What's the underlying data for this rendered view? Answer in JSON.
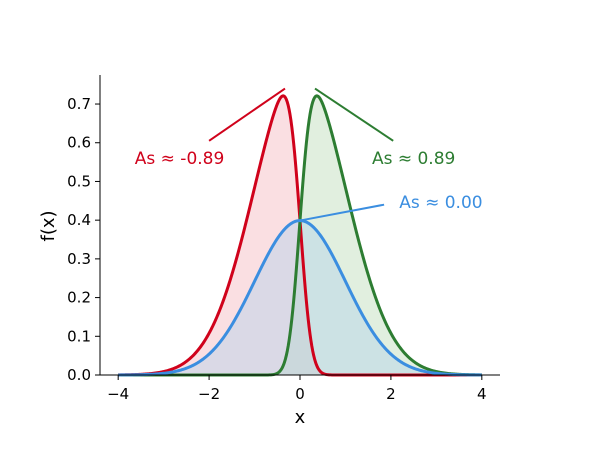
{
  "chart_data": {
    "type": "area",
    "title": "",
    "xlabel": "x",
    "ylabel": "f(x)",
    "xlim": [
      -4.4,
      4.4
    ],
    "ylim": [
      0.0,
      0.775
    ],
    "grid": false,
    "xticks": [
      -4,
      -2,
      0,
      2,
      4
    ],
    "xtick_labels": [
      "−4",
      "−2",
      "0",
      "2",
      "4"
    ],
    "yticks": [
      0.0,
      0.1,
      0.2,
      0.3,
      0.4,
      0.5,
      0.6,
      0.7
    ],
    "ytick_labels": [
      "0.0",
      "0.1",
      "0.2",
      "0.3",
      "0.4",
      "0.5",
      "0.6",
      "0.7"
    ],
    "series": [
      {
        "color": "#d0021b",
        "fill_color": "#f5b7bf",
        "skew_alpha": -5,
        "x_range": [
          -4,
          4
        ],
        "peak": {
          "x": -0.33,
          "y": 0.74
        },
        "annotation": {
          "text": "As ≈ -0.89",
          "text_at": [
            -2.65,
            0.56
          ],
          "points_to": [
            -0.33,
            0.74
          ],
          "line_from": [
            -2.0,
            0.605
          ]
        }
      },
      {
        "color": "#2d7d32",
        "fill_color": "#bcdcb9",
        "skew_alpha": 5,
        "x_range": [
          -4,
          4
        ],
        "peak": {
          "x": 0.33,
          "y": 0.74
        },
        "annotation": {
          "text": "As ≈ 0.89",
          "text_at": [
            2.5,
            0.56
          ],
          "points_to": [
            0.33,
            0.74
          ],
          "line_from": [
            2.05,
            0.605
          ]
        }
      },
      {
        "color": "#3b8ee0",
        "fill_color": "#b4d2ea",
        "skew_alpha": 0,
        "x_range": [
          -4,
          4
        ],
        "peak": {
          "x": 0.0,
          "y": 0.399
        },
        "annotation": {
          "text": "As ≈ 0.00",
          "text_at": [
            3.1,
            0.447
          ],
          "points_to": [
            0.0,
            0.399
          ],
          "line_from": [
            1.85,
            0.44
          ]
        }
      }
    ]
  }
}
